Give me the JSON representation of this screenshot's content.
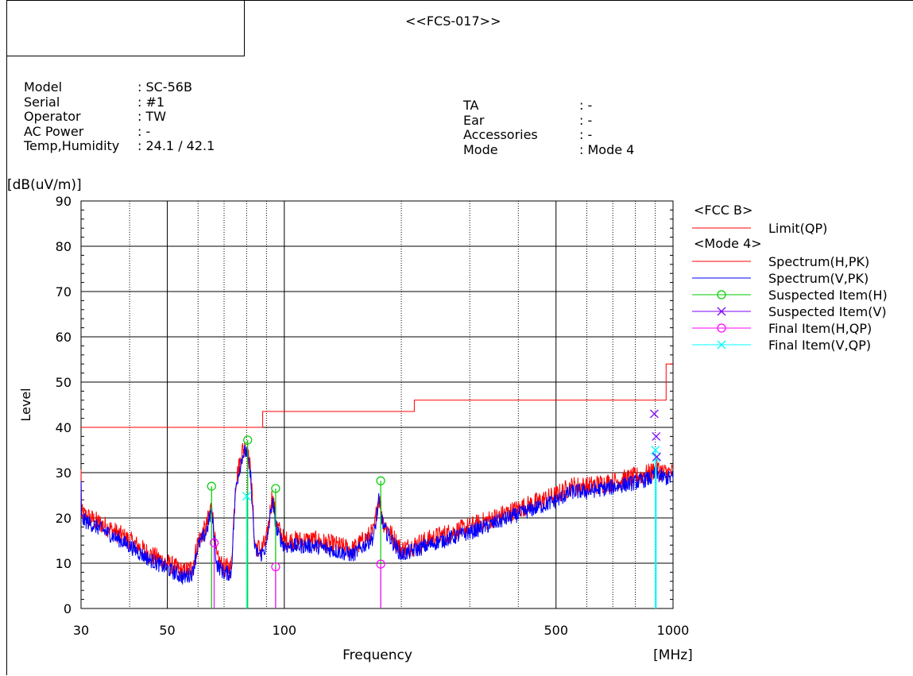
{
  "report": {
    "title": "<<FCS-017>>"
  },
  "info_left": [
    {
      "label": "Model",
      "value": ": SC-56B"
    },
    {
      "label": "Serial",
      "value": ": #1"
    },
    {
      "label": "Operator",
      "value": ": TW"
    },
    {
      "label": "AC Power",
      "value": ": -"
    },
    {
      "label": "Temp,Humidity",
      "value": ": 24.1 / 42.1"
    }
  ],
  "info_right": [
    {
      "label": "TA",
      "value": ": -"
    },
    {
      "label": "Ear",
      "value": ": -"
    },
    {
      "label": "Accessories",
      "value": ": -"
    },
    {
      "label": "Mode",
      "value": ": Mode 4"
    }
  ],
  "colors": {
    "limit": "#ff0000",
    "spectrum_h": "#ff0000",
    "spectrum_v": "#0000ff",
    "suspected_h": "#00cc00",
    "suspected_v": "#8000ff",
    "final_h": "#ff00ff",
    "final_v": "#00ffff"
  },
  "chart_data": {
    "type": "line",
    "xscale": "log",
    "xlim": [
      30,
      1000
    ],
    "ylim": [
      0,
      90
    ],
    "xlabel": "Frequency",
    "ylabel": "Level",
    "yunit": "[dB(uV/m)]",
    "xunit": "[MHz]",
    "grid": true,
    "xticks": [
      30,
      50,
      100,
      500,
      1000
    ],
    "xminor": [
      40,
      60,
      70,
      80,
      90,
      200,
      300,
      400,
      600,
      700,
      800,
      900
    ],
    "yticks": [
      0,
      10,
      20,
      30,
      40,
      50,
      60,
      70,
      80,
      90
    ],
    "legend": {
      "placement": "right",
      "group1": "<FCC B>",
      "group2": "<Mode 4>",
      "items": [
        {
          "label": "Limit(QP)",
          "key": "limit",
          "marker": "none",
          "group": 1
        },
        {
          "label": "Spectrum(H,PK)",
          "key": "spectrum_h",
          "marker": "none",
          "group": 2
        },
        {
          "label": "Spectrum(V,PK)",
          "key": "spectrum_v",
          "marker": "none",
          "group": 2
        },
        {
          "label": "Suspected Item(H)",
          "key": "suspected_h",
          "marker": "circle",
          "group": 2
        },
        {
          "label": "Suspected Item(V)",
          "key": "suspected_v",
          "marker": "x",
          "group": 2
        },
        {
          "label": "Final Item(H,QP)",
          "key": "final_h",
          "marker": "circle",
          "group": 2
        },
        {
          "label": "Final Item(V,QP)",
          "key": "final_v",
          "marker": "x",
          "group": 2
        }
      ]
    },
    "limit": [
      [
        30,
        40
      ],
      [
        88,
        40
      ],
      [
        88,
        43.5
      ],
      [
        216,
        43.5
      ],
      [
        216,
        46
      ],
      [
        960,
        46
      ],
      [
        960,
        54
      ],
      [
        1000,
        54
      ]
    ],
    "spectrum_envelope": [
      [
        30,
        21
      ],
      [
        35,
        18
      ],
      [
        40,
        15
      ],
      [
        45,
        12
      ],
      [
        50,
        10
      ],
      [
        55,
        8
      ],
      [
        58,
        9
      ],
      [
        60,
        15
      ],
      [
        63,
        18
      ],
      [
        65,
        23
      ],
      [
        67,
        11
      ],
      [
        70,
        9
      ],
      [
        73,
        9
      ],
      [
        75,
        28
      ],
      [
        78,
        35
      ],
      [
        80,
        36
      ],
      [
        82,
        30
      ],
      [
        84,
        14
      ],
      [
        87,
        13
      ],
      [
        90,
        15
      ],
      [
        93,
        25
      ],
      [
        96,
        18
      ],
      [
        100,
        15
      ],
      [
        120,
        15
      ],
      [
        150,
        13
      ],
      [
        170,
        17
      ],
      [
        175,
        25
      ],
      [
        180,
        19
      ],
      [
        200,
        13
      ],
      [
        250,
        16
      ],
      [
        300,
        18
      ],
      [
        400,
        22
      ],
      [
        500,
        25
      ],
      [
        550,
        27
      ],
      [
        600,
        27
      ],
      [
        700,
        28
      ],
      [
        800,
        29
      ],
      [
        880,
        30
      ],
      [
        900,
        31
      ],
      [
        950,
        30
      ],
      [
        1000,
        30
      ]
    ],
    "suspected_h": [
      [
        65,
        27
      ],
      [
        80.5,
        37.2
      ],
      [
        95,
        26.5
      ],
      [
        177,
        28.2
      ]
    ],
    "suspected_v": [
      [
        895,
        43
      ],
      [
        905,
        38
      ],
      [
        908,
        33.5
      ]
    ],
    "final_h": [
      [
        66,
        14.5
      ],
      [
        95,
        9.2
      ],
      [
        177,
        9.8
      ]
    ],
    "final_v": [
      [
        80,
        24.8
      ],
      [
        901,
        35
      ],
      [
        905,
        33.3
      ]
    ]
  }
}
